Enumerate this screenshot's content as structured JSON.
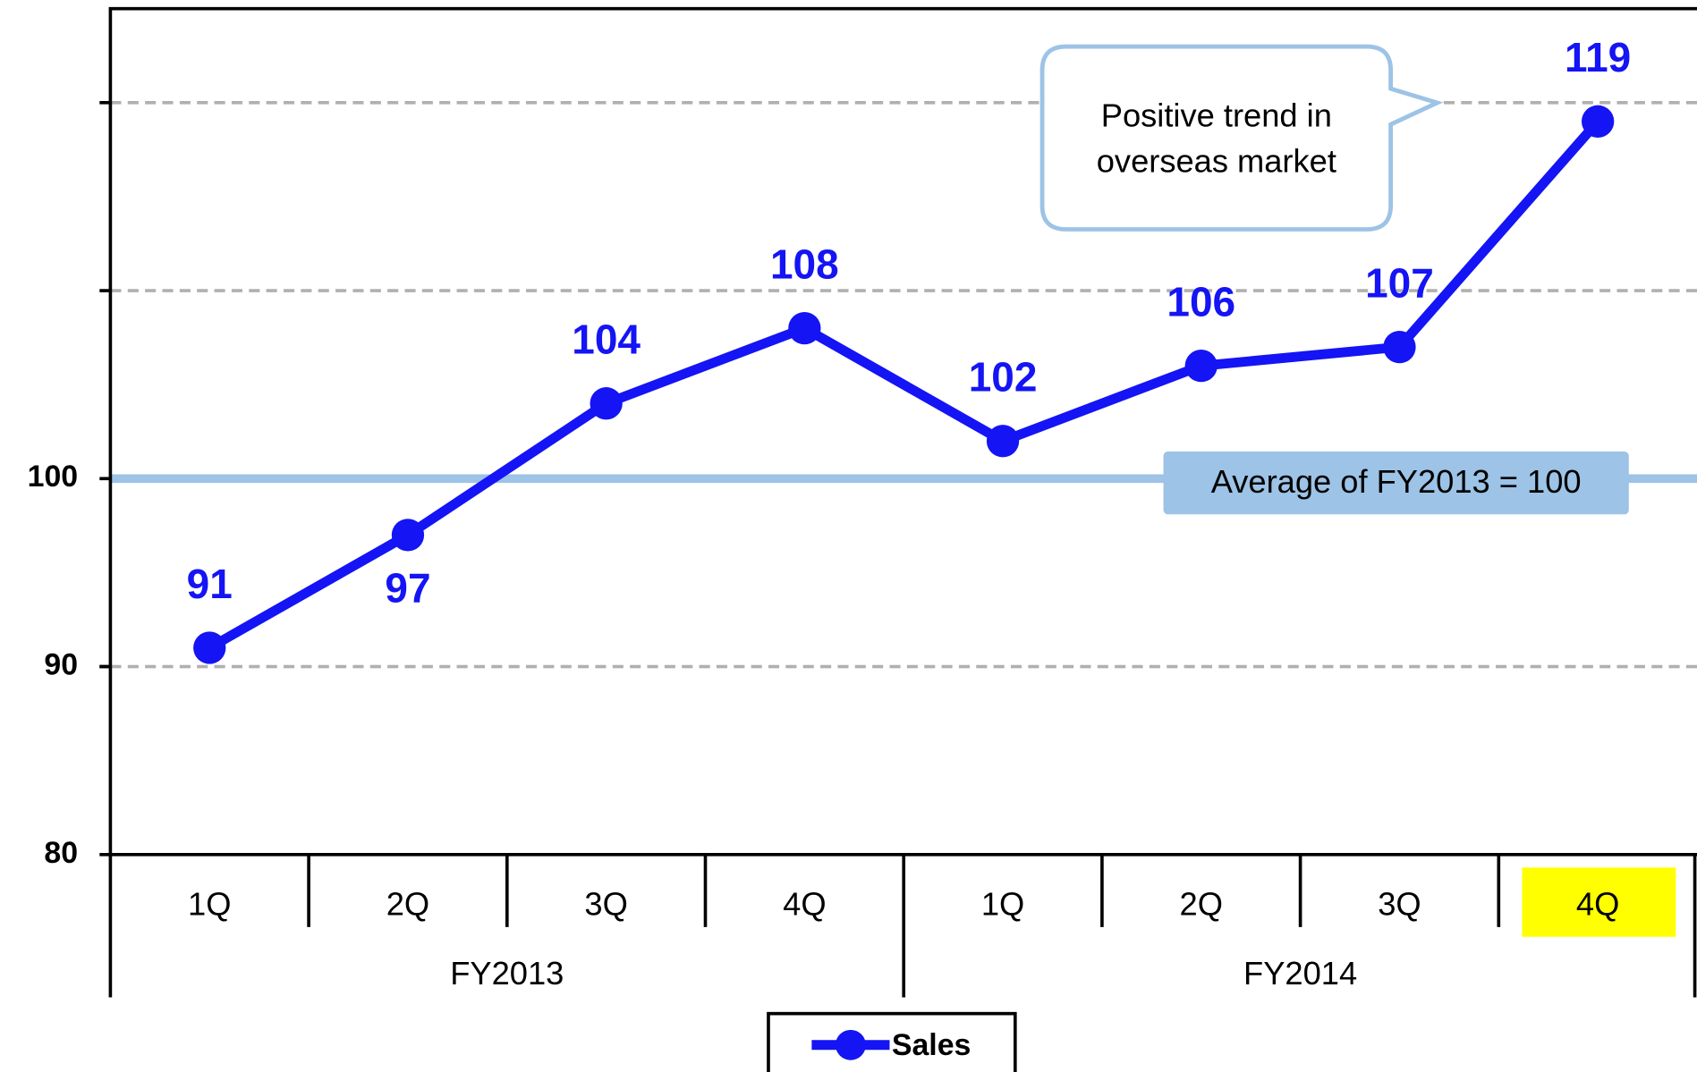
{
  "chart_data": {
    "type": "line",
    "groups": [
      {
        "label": "FY2013",
        "categories": [
          "1Q",
          "2Q",
          "3Q",
          "4Q"
        ]
      },
      {
        "label": "FY2014",
        "categories": [
          "1Q",
          "2Q",
          "3Q",
          "4Q"
        ]
      }
    ],
    "series": [
      {
        "name": "Sales",
        "color": "#1414f5",
        "values": [
          91,
          97,
          104,
          108,
          102,
          106,
          107,
          119
        ],
        "label_positions": [
          "above",
          "below",
          "above",
          "above",
          "above",
          "above",
          "above",
          "above"
        ]
      }
    ],
    "ylim": [
      80,
      125
    ],
    "yticks": [
      80,
      90,
      100
    ],
    "ygrid": [
      90,
      110,
      120
    ],
    "reference_line": {
      "value": 100,
      "label": "Average of FY2013 = 100",
      "color": "#9dc3e6"
    },
    "highlight": {
      "group": 1,
      "category": 3,
      "color": "#ffff00"
    },
    "annotation": {
      "lines": [
        "Positive trend in",
        "overseas market"
      ],
      "color": "#9dc3e6"
    },
    "legend": "bottom"
  }
}
